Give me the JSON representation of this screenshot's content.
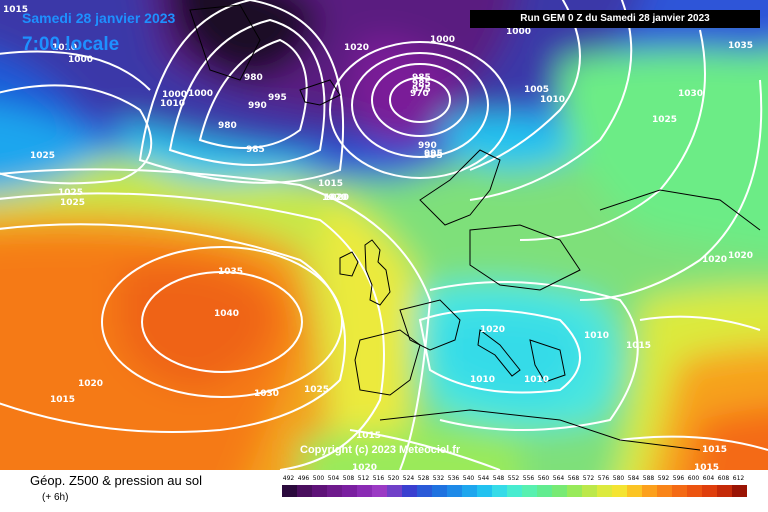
{
  "header": {
    "date": "Samedi 28 janvier 2023",
    "time": "7:00 locale",
    "run": "Run GEM 0 Z du Samedi 28 janvier 2023"
  },
  "map": {
    "isobar_labels": [
      "1015",
      "1000",
      "1010",
      "1010",
      "1000",
      "980",
      "985",
      "990",
      "995",
      "975",
      "980",
      "1000",
      "985",
      "995",
      "1020",
      "1020",
      "1000",
      "1000",
      "970",
      "985",
      "990",
      "995",
      "1005",
      "1010",
      "1035",
      "1030",
      "1025",
      "1025",
      "1025",
      "1025",
      "1015",
      "1020",
      "1035",
      "1040",
      "1030",
      "1020",
      "1015",
      "1025",
      "1020",
      "1010",
      "1010",
      "1010",
      "1015",
      "1020",
      "1020",
      "1015",
      "1015",
      "1020",
      "1015"
    ],
    "copyright": "Copyright (c) 2023 Meteociel.fr"
  },
  "footer": {
    "title": "Géop. Z500 & pression au sol",
    "subtitle": "(+ 6h)"
  },
  "scale": {
    "ticks": [
      "492",
      "496",
      "500",
      "504",
      "508",
      "512",
      "516",
      "520",
      "524",
      "528",
      "532",
      "536",
      "540",
      "544",
      "548",
      "552",
      "556",
      "560",
      "564",
      "568",
      "572",
      "576",
      "580",
      "584",
      "588",
      "592",
      "596",
      "600",
      "604",
      "608",
      "612"
    ],
    "colors": [
      "#2b0a3d",
      "#4a0f5e",
      "#5e1278",
      "#6e1a8c",
      "#7a1fa0",
      "#8a2bb4",
      "#9b3ac4",
      "#7040c8",
      "#3a3fd0",
      "#2a5ad8",
      "#1f72e0",
      "#1e8ae8",
      "#1ea6ee",
      "#22c2f0",
      "#36dbe8",
      "#48ecd0",
      "#58f0b0",
      "#62ec90",
      "#78ea74",
      "#98ea5a",
      "#bce84a",
      "#dcea3e",
      "#f4e432",
      "#fbc424",
      "#fca01c",
      "#f98418",
      "#f46a14",
      "#ec5410",
      "#df3e0c",
      "#c52a08",
      "#9a1404"
    ]
  }
}
